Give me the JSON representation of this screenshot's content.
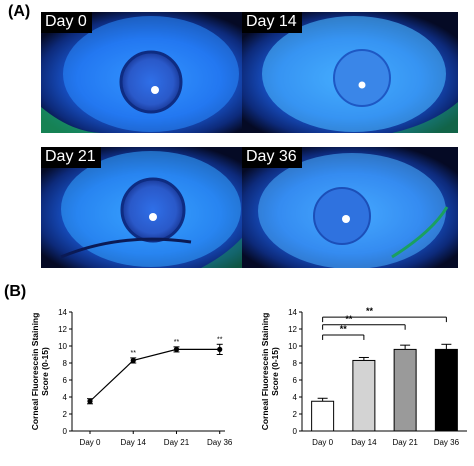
{
  "panel_a": {
    "label": "(A)",
    "photos": [
      {
        "day_label": "Day 0"
      },
      {
        "day_label": "Day 14"
      },
      {
        "day_label": "Day 21"
      },
      {
        "day_label": "Day 36"
      }
    ]
  },
  "panel_b": {
    "label": "(B)"
  },
  "chart_data": [
    {
      "type": "line",
      "title": "",
      "xlabel": "",
      "ylabel": "Corneal Fluorescein Staining Score (0-15)",
      "ylabel_lines": [
        "Corneal Fluorescein Staining",
        "Score (0-15)"
      ],
      "categories": [
        "Day 0",
        "Day 14",
        "Day 21",
        "Day 36"
      ],
      "values": [
        3.5,
        8.3,
        9.6,
        9.6
      ],
      "errors": [
        0.3,
        0.3,
        0.3,
        0.6
      ],
      "annotations": [
        "",
        "**",
        "**",
        "**"
      ],
      "ylim": [
        0,
        14
      ],
      "yticks": [
        "0",
        "2",
        "4",
        "6",
        "8",
        "10",
        "12",
        "14"
      ],
      "colors": {
        "line": "#000000",
        "marker": "#000000"
      }
    },
    {
      "type": "bar",
      "title": "",
      "xlabel": "",
      "ylabel": "Corneal Fluorescein Staining Score (0-15)",
      "ylabel_lines": [
        "Corneal Fluorescein Staining",
        "Score (0-15)"
      ],
      "categories": [
        "Day 0",
        "Day 14",
        "Day 21",
        "Day 36"
      ],
      "values": [
        3.5,
        8.3,
        9.6,
        9.6
      ],
      "errors": [
        0.35,
        0.35,
        0.5,
        0.6
      ],
      "ylim": [
        0,
        14
      ],
      "yticks": [
        "0",
        "2",
        "4",
        "6",
        "8",
        "10",
        "12",
        "14"
      ],
      "bar_colors": [
        "#ffffff",
        "#d3d3d3",
        "#9a9a9a",
        "#000000"
      ],
      "significance": [
        {
          "from": 0,
          "to": 1,
          "label": "**",
          "y": 11.3
        },
        {
          "from": 0,
          "to": 2,
          "label": "**",
          "y": 12.5
        },
        {
          "from": 0,
          "to": 3,
          "label": "**",
          "y": 13.4
        }
      ]
    }
  ]
}
